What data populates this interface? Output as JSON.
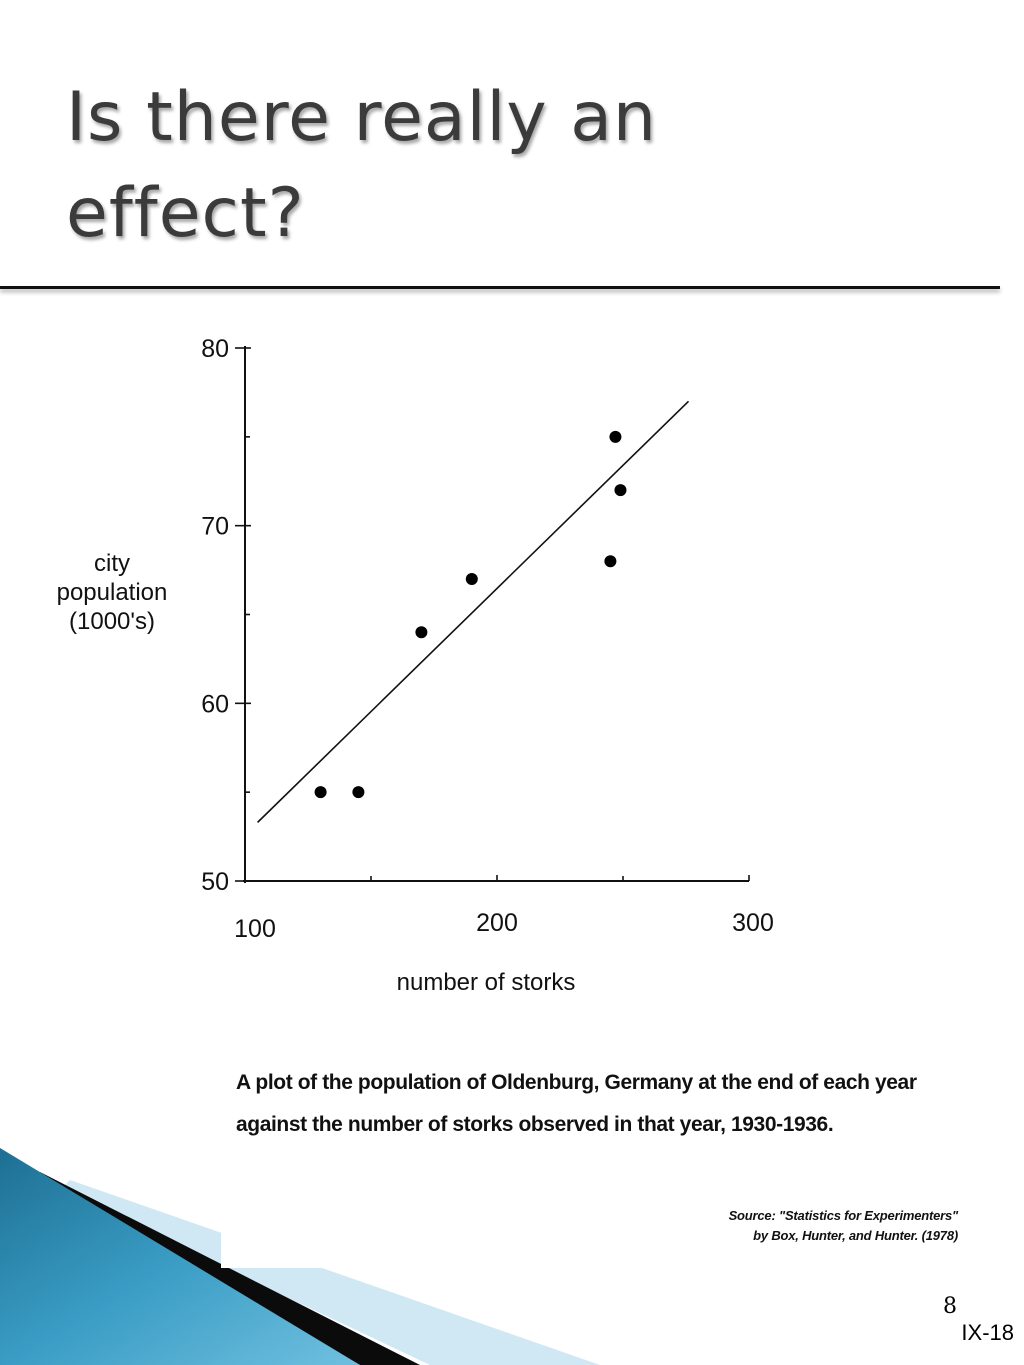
{
  "slide": {
    "title": "Is there really an effect?",
    "caption_line1": "A plot of the population of Oldenburg, Germany at the end of each year",
    "caption_line2": "against the number of storks observed in that year, 1930-1936.",
    "source_line1": "Source: \"Statistics for Experimenters\"",
    "source_line2": "by Box, Hunter, and Hunter.  (1978)",
    "page_number": "8",
    "slide_code": "IX-18",
    "colors": {
      "title": "#3b3b3b",
      "accent_blue": "#2a8bb0",
      "accent_light": "#bfe0ee"
    }
  },
  "chart_data": {
    "type": "scatter",
    "title": "",
    "xlabel": "number of storks",
    "ylabel_lines": [
      "city",
      "population",
      "(1000's)"
    ],
    "xlim": [
      100,
      300
    ],
    "ylim": [
      50,
      80
    ],
    "x_ticks": [
      100,
      200,
      300
    ],
    "y_ticks": [
      50,
      60,
      70,
      80
    ],
    "grid": false,
    "series": [
      {
        "points": [
          {
            "x": 130,
            "y": 55
          },
          {
            "x": 145,
            "y": 55
          },
          {
            "x": 170,
            "y": 64
          },
          {
            "x": 190,
            "y": 67
          },
          {
            "x": 245,
            "y": 68
          },
          {
            "x": 247,
            "y": 75
          },
          {
            "x": 249,
            "y": 72
          }
        ]
      }
    ],
    "fit_line": {
      "x": [
        105,
        276
      ],
      "y": [
        53.3,
        77
      ]
    }
  }
}
